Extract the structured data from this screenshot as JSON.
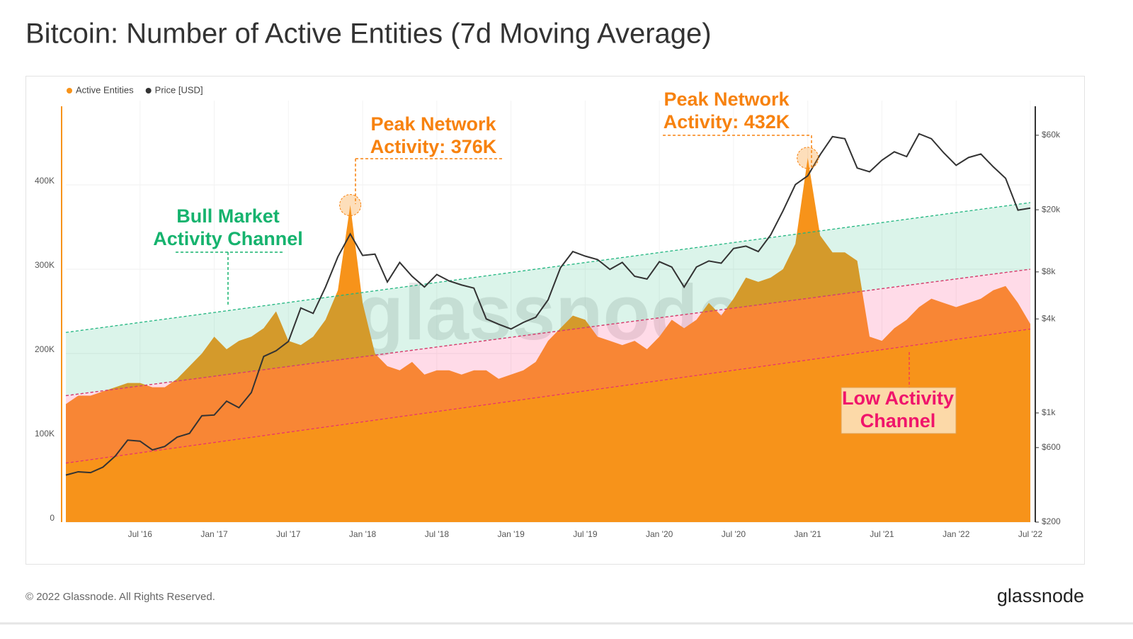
{
  "chart_data": {
    "type": "area-line",
    "title": "Bitcoin: Number of Active Entities (7d Moving Average)",
    "x": [
      "2016-01",
      "2016-02",
      "2016-03",
      "2016-04",
      "2016-05",
      "2016-06",
      "2016-07",
      "2016-08",
      "2016-09",
      "2016-10",
      "2016-11",
      "2016-12",
      "2017-01",
      "2017-02",
      "2017-03",
      "2017-04",
      "2017-05",
      "2017-06",
      "2017-07",
      "2017-08",
      "2017-09",
      "2017-10",
      "2017-11",
      "2017-12",
      "2018-01",
      "2018-02",
      "2018-03",
      "2018-04",
      "2018-05",
      "2018-06",
      "2018-07",
      "2018-08",
      "2018-09",
      "2018-10",
      "2018-11",
      "2018-12",
      "2019-01",
      "2019-02",
      "2019-03",
      "2019-04",
      "2019-05",
      "2019-06",
      "2019-07",
      "2019-08",
      "2019-09",
      "2019-10",
      "2019-11",
      "2019-12",
      "2020-01",
      "2020-02",
      "2020-03",
      "2020-04",
      "2020-05",
      "2020-06",
      "2020-07",
      "2020-08",
      "2020-09",
      "2020-10",
      "2020-11",
      "2020-12",
      "2021-01",
      "2021-02",
      "2021-03",
      "2021-04",
      "2021-05",
      "2021-06",
      "2021-07",
      "2021-08",
      "2021-09",
      "2021-10",
      "2021-11",
      "2021-12",
      "2022-01",
      "2022-02",
      "2022-03",
      "2022-04",
      "2022-05",
      "2022-06",
      "2022-07"
    ],
    "series": [
      {
        "name": "Active Entities",
        "color": "#f7931a",
        "axis": "y",
        "values": [
          140000,
          150000,
          150000,
          155000,
          160000,
          165000,
          165000,
          160000,
          160000,
          170000,
          185000,
          200000,
          220000,
          205000,
          215000,
          220000,
          230000,
          250000,
          215000,
          210000,
          220000,
          240000,
          275000,
          376000,
          260000,
          200000,
          185000,
          180000,
          190000,
          175000,
          180000,
          180000,
          175000,
          180000,
          180000,
          170000,
          175000,
          180000,
          190000,
          215000,
          230000,
          245000,
          240000,
          220000,
          215000,
          210000,
          215000,
          205000,
          220000,
          240000,
          230000,
          240000,
          260000,
          245000,
          265000,
          290000,
          285000,
          290000,
          300000,
          330000,
          432000,
          340000,
          320000,
          320000,
          310000,
          220000,
          215000,
          230000,
          240000,
          255000,
          265000,
          260000,
          255000,
          260000,
          265000,
          275000,
          280000,
          260000,
          235000
        ]
      },
      {
        "name": "Price [USD]",
        "color": "#333333",
        "axis": "y2",
        "values": [
          400,
          420,
          415,
          450,
          530,
          670,
          660,
          580,
          610,
          700,
          740,
          960,
          970,
          1190,
          1080,
          1350,
          2300,
          2500,
          2870,
          4700,
          4340,
          6400,
          10000,
          14000,
          10200,
          10400,
          6900,
          9200,
          7500,
          6400,
          7700,
          7000,
          6600,
          6300,
          4000,
          3700,
          3450,
          3800,
          4100,
          5300,
          8500,
          10800,
          10100,
          9600,
          8300,
          9200,
          7500,
          7200,
          9300,
          8600,
          6400,
          8600,
          9400,
          9100,
          11300,
          11700,
          10800,
          13800,
          19700,
          29000,
          33000,
          45000,
          58800,
          57000,
          37000,
          35000,
          41500,
          47000,
          43800,
          61300,
          57000,
          46300,
          38500,
          43200,
          45500,
          37700,
          31800,
          19900,
          20500
        ]
      }
    ],
    "ylim": [
      0,
      500000
    ],
    "yticks": [
      0,
      {
        "value": 100000,
        "label": "100K"
      },
      {
        "value": 200000,
        "label": "200K"
      },
      {
        "value": 300000,
        "label": "300K"
      },
      {
        "value": 400000,
        "label": "400K"
      }
    ],
    "y2lim": [
      200,
      100000
    ],
    "y2log": true,
    "y2ticks": [
      {
        "value": 200,
        "label": "$200"
      },
      {
        "value": 600,
        "label": "$600"
      },
      {
        "value": 1000,
        "label": "$1k"
      },
      {
        "value": 4000,
        "label": "$4k"
      },
      {
        "value": 8000,
        "label": "$8k"
      },
      {
        "value": 20000,
        "label": "$20k"
      },
      {
        "value": 60000,
        "label": "$60k"
      }
    ],
    "xticks": [
      {
        "value": "2016-07",
        "label": "Jul '16"
      },
      {
        "value": "2017-01",
        "label": "Jan '17"
      },
      {
        "value": "2017-07",
        "label": "Jul '17"
      },
      {
        "value": "2018-01",
        "label": "Jan '18"
      },
      {
        "value": "2018-07",
        "label": "Jul '18"
      },
      {
        "value": "2019-01",
        "label": "Jan '19"
      },
      {
        "value": "2019-07",
        "label": "Jul '19"
      },
      {
        "value": "2020-01",
        "label": "Jan '20"
      },
      {
        "value": "2020-07",
        "label": "Jul '20"
      },
      {
        "value": "2021-01",
        "label": "Jan '21"
      },
      {
        "value": "2021-07",
        "label": "Jul '21"
      },
      {
        "value": "2022-01",
        "label": "Jan '22"
      },
      {
        "value": "2022-07",
        "label": "Jul '22"
      }
    ],
    "grid": true,
    "legend": "top-left",
    "channels": [
      {
        "color": "#1fb57f",
        "fill": "rgba(40,190,130,0.17)",
        "x": [
          "2016-01",
          "2022-07"
        ],
        "upper": [
          225000,
          379000
        ],
        "lower": [
          150000,
          300000
        ]
      },
      {
        "color": "#e8336d",
        "fill": "rgba(255,90,150,0.22)",
        "x": [
          "2016-01",
          "2022-07"
        ],
        "upper": [
          150000,
          300000
        ],
        "lower": [
          70000,
          229000
        ]
      }
    ],
    "annotations": [
      {
        "lines": [
          "Bull Market",
          "Activity Channel"
        ],
        "color": "#16b36e"
      },
      {
        "lines": [
          "Peak Network",
          "Activity: 376K"
        ],
        "color": "#f7820f"
      },
      {
        "lines": [
          "Peak Network",
          "Activity: 432K"
        ],
        "color": "#f7820f"
      },
      {
        "lines": [
          "Low Activity",
          "Channel"
        ],
        "color": "#f0146b"
      }
    ],
    "watermark": "glassnode"
  },
  "footer": "© 2022 Glassnode. All Rights Reserved.",
  "logo": "glassnode"
}
